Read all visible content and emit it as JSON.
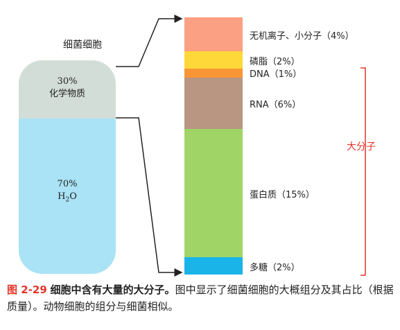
{
  "cell": {
    "title": "细菌细胞",
    "chem_percent": "30%",
    "chem_label": "化学物质",
    "water_percent": "70%",
    "water_formula": "H",
    "water_sub": "2",
    "water_formula_end": "O"
  },
  "segments": [
    {
      "label": "无机离子、小分子（4%）",
      "percent": 4,
      "color": "#fba082"
    },
    {
      "label": "磷脂（2%）",
      "percent": 2,
      "color": "#fdd838"
    },
    {
      "label": "DNA（1%）",
      "percent": 1,
      "color": "#fa9535"
    },
    {
      "label": "RNA（6%）",
      "percent": 6,
      "color": "#b89682"
    },
    {
      "label": "蛋白质（15%）",
      "percent": 15,
      "color": "#a0d466"
    },
    {
      "label": "多糖（2%）",
      "percent": 2,
      "color": "#1bb4e8"
    }
  ],
  "bracket": {
    "label": "大分子",
    "color": "#e2362a"
  },
  "caption": {
    "fig": "图 2-29",
    "bold": "细胞中含有大量的大分子。",
    "text": "图中显示了细菌细胞的大概组分及其占比（根据质量）。动物细胞的组分与细菌相似。"
  }
}
